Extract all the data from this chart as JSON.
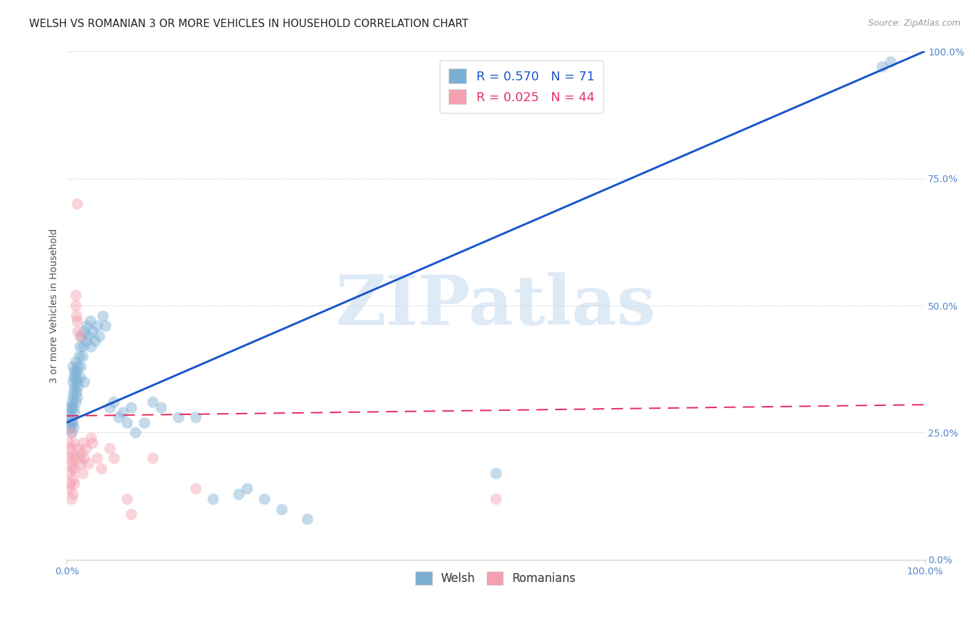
{
  "title": "WELSH VS ROMANIAN 3 OR MORE VEHICLES IN HOUSEHOLD CORRELATION CHART",
  "source": "Source: ZipAtlas.com",
  "ylabel": "3 or more Vehicles in Household",
  "watermark": "ZIPatlas",
  "welsh_R": 0.57,
  "welsh_N": 71,
  "romanian_R": 0.025,
  "romanian_N": 44,
  "welsh_color": "#7BAFD4",
  "romanian_color": "#F4A0B0",
  "welsh_line_color": "#1A56CC",
  "romanian_line_color": "#E83060",
  "background_color": "#FFFFFF",
  "xlim": [
    0,
    1
  ],
  "ylim": [
    0,
    1
  ],
  "welsh_line_x0": 0.0,
  "welsh_line_y0": 0.27,
  "welsh_line_x1": 1.0,
  "welsh_line_y1": 1.0,
  "romanian_line_x0": 0.0,
  "romanian_line_y0": 0.283,
  "romanian_line_x1": 1.0,
  "romanian_line_y1": 0.305,
  "welsh_points": [
    [
      0.002,
      0.28
    ],
    [
      0.003,
      0.27
    ],
    [
      0.003,
      0.3
    ],
    [
      0.004,
      0.26
    ],
    [
      0.004,
      0.29
    ],
    [
      0.005,
      0.27
    ],
    [
      0.005,
      0.25
    ],
    [
      0.005,
      0.3
    ],
    [
      0.006,
      0.28
    ],
    [
      0.006,
      0.31
    ],
    [
      0.007,
      0.27
    ],
    [
      0.007,
      0.32
    ],
    [
      0.007,
      0.35
    ],
    [
      0.007,
      0.38
    ],
    [
      0.008,
      0.3
    ],
    [
      0.008,
      0.26
    ],
    [
      0.008,
      0.33
    ],
    [
      0.008,
      0.36
    ],
    [
      0.009,
      0.29
    ],
    [
      0.009,
      0.34
    ],
    [
      0.009,
      0.37
    ],
    [
      0.01,
      0.31
    ],
    [
      0.01,
      0.36
    ],
    [
      0.01,
      0.39
    ],
    [
      0.011,
      0.33
    ],
    [
      0.011,
      0.37
    ],
    [
      0.012,
      0.35
    ],
    [
      0.012,
      0.32
    ],
    [
      0.013,
      0.38
    ],
    [
      0.013,
      0.34
    ],
    [
      0.014,
      0.4
    ],
    [
      0.015,
      0.36
    ],
    [
      0.015,
      0.42
    ],
    [
      0.016,
      0.38
    ],
    [
      0.017,
      0.44
    ],
    [
      0.018,
      0.4
    ],
    [
      0.019,
      0.42
    ],
    [
      0.02,
      0.45
    ],
    [
      0.02,
      0.35
    ],
    [
      0.022,
      0.43
    ],
    [
      0.023,
      0.46
    ],
    [
      0.025,
      0.44
    ],
    [
      0.027,
      0.47
    ],
    [
      0.028,
      0.42
    ],
    [
      0.03,
      0.45
    ],
    [
      0.033,
      0.43
    ],
    [
      0.035,
      0.46
    ],
    [
      0.038,
      0.44
    ],
    [
      0.042,
      0.48
    ],
    [
      0.045,
      0.46
    ],
    [
      0.05,
      0.3
    ],
    [
      0.055,
      0.31
    ],
    [
      0.06,
      0.28
    ],
    [
      0.065,
      0.29
    ],
    [
      0.07,
      0.27
    ],
    [
      0.075,
      0.3
    ],
    [
      0.08,
      0.25
    ],
    [
      0.09,
      0.27
    ],
    [
      0.1,
      0.31
    ],
    [
      0.11,
      0.3
    ],
    [
      0.13,
      0.28
    ],
    [
      0.15,
      0.28
    ],
    [
      0.17,
      0.12
    ],
    [
      0.2,
      0.13
    ],
    [
      0.21,
      0.14
    ],
    [
      0.23,
      0.12
    ],
    [
      0.25,
      0.1
    ],
    [
      0.28,
      0.08
    ],
    [
      0.5,
      0.17
    ],
    [
      0.95,
      0.97
    ],
    [
      0.96,
      0.98
    ]
  ],
  "romanian_points": [
    [
      0.002,
      0.23
    ],
    [
      0.003,
      0.2
    ],
    [
      0.003,
      0.17
    ],
    [
      0.003,
      0.14
    ],
    [
      0.004,
      0.22
    ],
    [
      0.004,
      0.15
    ],
    [
      0.005,
      0.19
    ],
    [
      0.005,
      0.12
    ],
    [
      0.005,
      0.25
    ],
    [
      0.006,
      0.18
    ],
    [
      0.006,
      0.21
    ],
    [
      0.007,
      0.16
    ],
    [
      0.007,
      0.13
    ],
    [
      0.008,
      0.2
    ],
    [
      0.008,
      0.23
    ],
    [
      0.009,
      0.18
    ],
    [
      0.009,
      0.15
    ],
    [
      0.01,
      0.5
    ],
    [
      0.01,
      0.52
    ],
    [
      0.011,
      0.48
    ],
    [
      0.012,
      0.7
    ],
    [
      0.012,
      0.47
    ],
    [
      0.013,
      0.22
    ],
    [
      0.013,
      0.45
    ],
    [
      0.014,
      0.2
    ],
    [
      0.015,
      0.44
    ],
    [
      0.016,
      0.19
    ],
    [
      0.017,
      0.21
    ],
    [
      0.018,
      0.17
    ],
    [
      0.019,
      0.23
    ],
    [
      0.02,
      0.2
    ],
    [
      0.022,
      0.22
    ],
    [
      0.025,
      0.19
    ],
    [
      0.028,
      0.24
    ],
    [
      0.03,
      0.23
    ],
    [
      0.035,
      0.2
    ],
    [
      0.04,
      0.18
    ],
    [
      0.05,
      0.22
    ],
    [
      0.055,
      0.2
    ],
    [
      0.07,
      0.12
    ],
    [
      0.075,
      0.09
    ],
    [
      0.1,
      0.2
    ],
    [
      0.15,
      0.14
    ],
    [
      0.5,
      0.12
    ]
  ],
  "title_fontsize": 11,
  "axis_label_fontsize": 10,
  "tick_fontsize": 10,
  "legend_fontsize": 13,
  "ytick_labels": [
    "0.0%",
    "25.0%",
    "50.0%",
    "75.0%",
    "100.0%"
  ],
  "ytick_values": [
    0.0,
    0.25,
    0.5,
    0.75,
    1.0
  ],
  "xtick_labels": [
    "0.0%",
    "100.0%"
  ],
  "xtick_values": [
    0.0,
    1.0
  ]
}
